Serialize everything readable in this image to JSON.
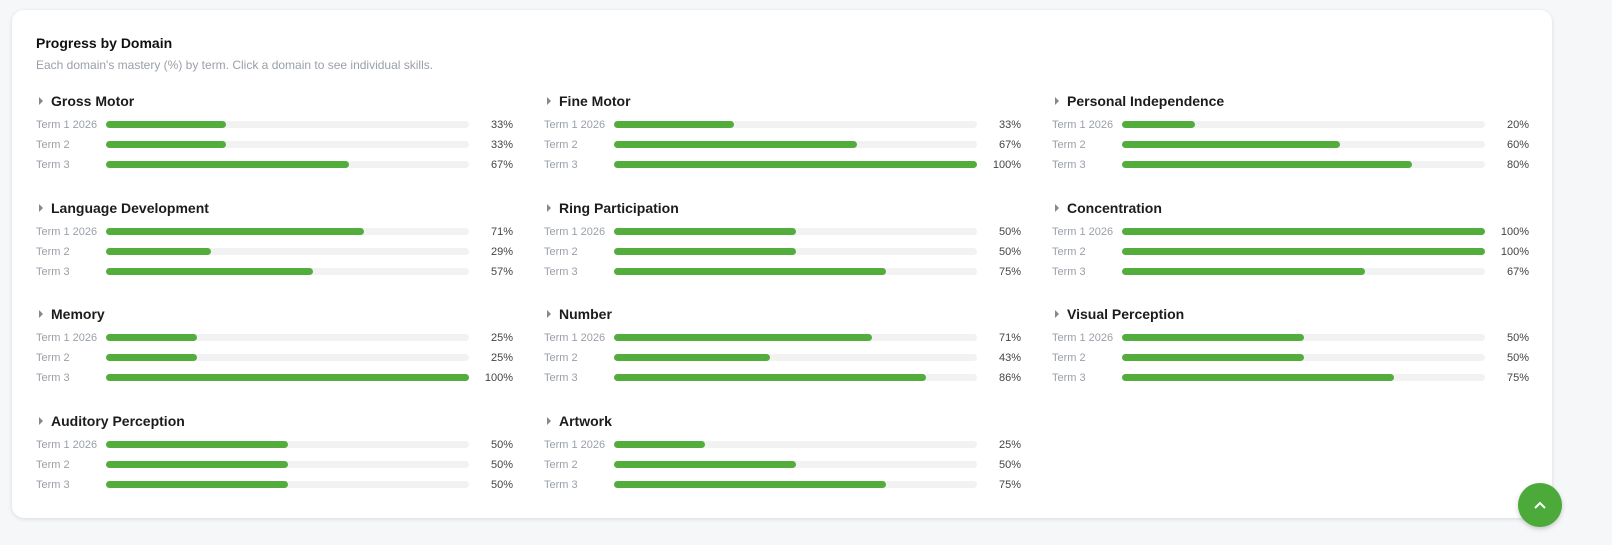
{
  "header": {
    "title": "Progress by Domain",
    "subtitle": "Each domain's mastery (%) by term. Click a domain to see individual skills."
  },
  "domains": [
    {
      "name": "Gross Motor",
      "terms": [
        {
          "term": "Term 1 2026",
          "value": 33,
          "label": "33%"
        },
        {
          "term": "Term 2",
          "value": 33,
          "label": "33%"
        },
        {
          "term": "Term 3",
          "value": 67,
          "label": "67%"
        }
      ]
    },
    {
      "name": "Fine Motor",
      "terms": [
        {
          "term": "Term 1 2026",
          "value": 33,
          "label": "33%"
        },
        {
          "term": "Term 2",
          "value": 67,
          "label": "67%"
        },
        {
          "term": "Term 3",
          "value": 100,
          "label": "100%"
        }
      ]
    },
    {
      "name": "Personal Independence",
      "terms": [
        {
          "term": "Term 1 2026",
          "value": 20,
          "label": "20%"
        },
        {
          "term": "Term 2",
          "value": 60,
          "label": "60%"
        },
        {
          "term": "Term 3",
          "value": 80,
          "label": "80%"
        }
      ]
    },
    {
      "name": "Language Development",
      "terms": [
        {
          "term": "Term 1 2026",
          "value": 71,
          "label": "71%"
        },
        {
          "term": "Term 2",
          "value": 29,
          "label": "29%"
        },
        {
          "term": "Term 3",
          "value": 57,
          "label": "57%"
        }
      ]
    },
    {
      "name": "Ring Participation",
      "terms": [
        {
          "term": "Term 1 2026",
          "value": 50,
          "label": "50%"
        },
        {
          "term": "Term 2",
          "value": 50,
          "label": "50%"
        },
        {
          "term": "Term 3",
          "value": 75,
          "label": "75%"
        }
      ]
    },
    {
      "name": "Concentration",
      "terms": [
        {
          "term": "Term 1 2026",
          "value": 100,
          "label": "100%"
        },
        {
          "term": "Term 2",
          "value": 100,
          "label": "100%"
        },
        {
          "term": "Term 3",
          "value": 67,
          "label": "67%"
        }
      ]
    },
    {
      "name": "Memory",
      "terms": [
        {
          "term": "Term 1 2026",
          "value": 25,
          "label": "25%"
        },
        {
          "term": "Term 2",
          "value": 25,
          "label": "25%"
        },
        {
          "term": "Term 3",
          "value": 100,
          "label": "100%"
        }
      ]
    },
    {
      "name": "Number",
      "terms": [
        {
          "term": "Term 1 2026",
          "value": 71,
          "label": "71%"
        },
        {
          "term": "Term 2",
          "value": 43,
          "label": "43%"
        },
        {
          "term": "Term 3",
          "value": 86,
          "label": "86%"
        }
      ]
    },
    {
      "name": "Visual Perception",
      "terms": [
        {
          "term": "Term 1 2026",
          "value": 50,
          "label": "50%"
        },
        {
          "term": "Term 2",
          "value": 50,
          "label": "50%"
        },
        {
          "term": "Term 3",
          "value": 75,
          "label": "75%"
        }
      ]
    },
    {
      "name": "Auditory Perception",
      "terms": [
        {
          "term": "Term 1 2026",
          "value": 50,
          "label": "50%"
        },
        {
          "term": "Term 2",
          "value": 50,
          "label": "50%"
        },
        {
          "term": "Term 3",
          "value": 50,
          "label": "50%"
        }
      ]
    },
    {
      "name": "Artwork",
      "terms": [
        {
          "term": "Term 1 2026",
          "value": 25,
          "label": "25%"
        },
        {
          "term": "Term 2",
          "value": 50,
          "label": "50%"
        },
        {
          "term": "Term 3",
          "value": 75,
          "label": "75%"
        }
      ]
    }
  ]
}
